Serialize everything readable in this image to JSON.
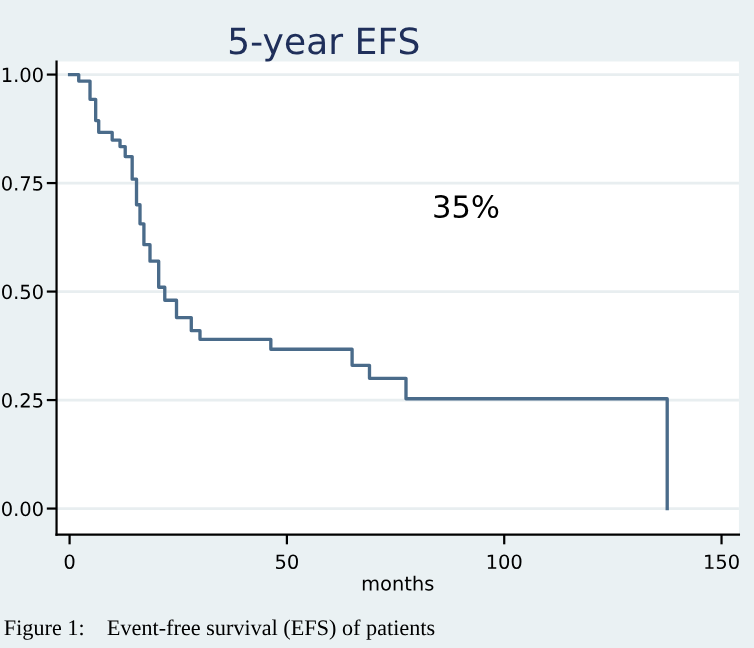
{
  "chart_data": {
    "type": "step",
    "title": "5-year EFS",
    "xlabel": "months",
    "annotations": [
      "35%",
      "Figure 1:    Event-free survival (EFS) of patients"
    ],
    "series": [
      {
        "color": "#4a6b8a",
        "x": [
          0,
          2.1,
          4.7,
          6.0,
          6.7,
          9.8,
          11.6,
          12.8,
          14.4,
          15.4,
          16.2,
          17.1,
          18.5,
          20.5,
          21.9,
          24.6,
          28,
          30,
          46.3,
          65,
          69,
          77.4,
          137.5
        ],
        "values": [
          1.0,
          0.985,
          0.943,
          0.894,
          0.867,
          0.849,
          0.834,
          0.811,
          0.759,
          0.7,
          0.656,
          0.608,
          0.57,
          0.51,
          0.48,
          0.44,
          0.41,
          0.39,
          0.367,
          0.33,
          0.3,
          0.253,
          0
        ]
      }
    ],
    "xlim": [
      -3,
      154
    ],
    "ylim": [
      -0.06,
      1.03
    ],
    "xticks": [
      0,
      50,
      100,
      150
    ],
    "yticks": [
      {
        "value": 0,
        "label": "0.00"
      },
      {
        "value": 0.25,
        "label": "0.25"
      },
      {
        "value": 0.5,
        "label": "0.50"
      },
      {
        "value": 0.75,
        "label": "0.75"
      },
      {
        "value": 1,
        "label": "1.00"
      }
    ],
    "grid": "y"
  }
}
